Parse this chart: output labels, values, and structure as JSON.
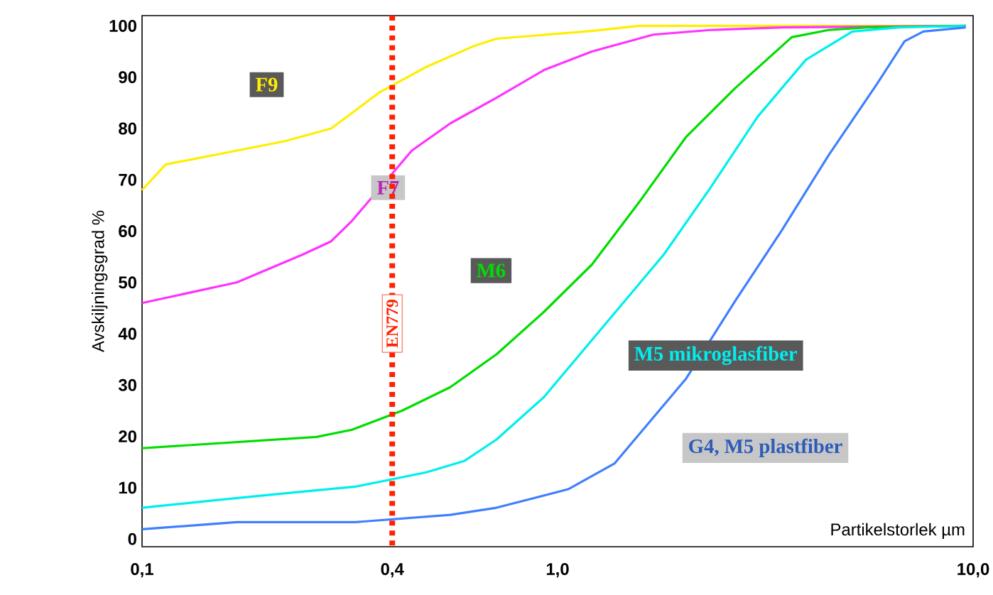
{
  "chart_data": {
    "type": "line",
    "xlabel": "Partikelstorlek µm",
    "ylabel": "Avskiljningsgrad %",
    "log": "x",
    "xlim": [
      0.1,
      10
    ],
    "ylim": [
      -1.5,
      102
    ],
    "xticks": [
      {
        "value": 0.1,
        "label": "0,1"
      },
      {
        "value": 0.4,
        "label": "0,4"
      },
      {
        "value": 1,
        "label": "1,0"
      },
      {
        "value": 10,
        "label": "10,0"
      }
    ],
    "yticks": [
      0,
      10,
      20,
      30,
      40,
      50,
      60,
      70,
      80,
      90,
      100
    ],
    "grid": false,
    "marker": "none",
    "line_style": "solid",
    "ref_lines": [
      {
        "axis": "x",
        "value": 0.4,
        "label": "EN779",
        "color": "#ff2200",
        "line_style": "dotted"
      }
    ],
    "series": [
      {
        "name": "F9",
        "color": "#ffee00",
        "x": [
          0.1,
          0.114,
          0.22,
          0.285,
          0.32,
          0.372,
          0.483,
          0.626,
          0.713,
          1.21,
          1.57,
          9.6
        ],
        "values": [
          68,
          73,
          77.5,
          80,
          83,
          87,
          92,
          96,
          97.5,
          99,
          100,
          100
        ]
      },
      {
        "name": "F7",
        "color": "#ff33ff",
        "x": [
          0.1,
          0.169,
          0.243,
          0.285,
          0.32,
          0.446,
          0.552,
          0.713,
          0.928,
          1.21,
          1.7,
          2.33,
          3.46,
          9.6
        ],
        "values": [
          46,
          50,
          55.4,
          58,
          62,
          75.7,
          81,
          86,
          91.4,
          95,
          98.3,
          99.2,
          99.7,
          100
        ]
      },
      {
        "name": "M6",
        "color": "#00dd00",
        "x": [
          0.1,
          0.263,
          0.32,
          0.422,
          0.552,
          0.713,
          0.928,
          1.21,
          1.57,
          2.04,
          2.67,
          3.66,
          4.49,
          5.54,
          9.6
        ],
        "values": [
          17.7,
          19.9,
          21.3,
          25,
          29.6,
          36,
          44.3,
          53.5,
          65.6,
          78.4,
          87.8,
          97.8,
          99.2,
          99.7,
          100
        ]
      },
      {
        "name": "M5 mikroglasfiber",
        "color": "#00eeee",
        "x": [
          0.1,
          0.148,
          0.22,
          0.326,
          0.483,
          0.596,
          0.713,
          0.928,
          1.21,
          1.8,
          2.33,
          3.03,
          3.96,
          5.12,
          6.63,
          9.6
        ],
        "values": [
          6.1,
          7.5,
          8.9,
          10.2,
          13,
          15.2,
          19.4,
          27.7,
          38.8,
          55.4,
          68.4,
          82.3,
          93.4,
          98.9,
          99.7,
          100
        ]
      },
      {
        "name": "G4, M5 plastfiber",
        "color": "#3f7fff",
        "x": [
          0.1,
          0.169,
          0.326,
          0.552,
          0.713,
          1.06,
          1.37,
          2.04,
          2.67,
          3.46,
          4.49,
          5.86,
          6.84,
          7.59,
          9.6
        ],
        "values": [
          1.9,
          3.3,
          3.3,
          4.7,
          6.1,
          9.7,
          14.7,
          31.3,
          46.3,
          60.1,
          74.8,
          88.6,
          97,
          98.9,
          99.7
        ]
      }
    ]
  }
}
